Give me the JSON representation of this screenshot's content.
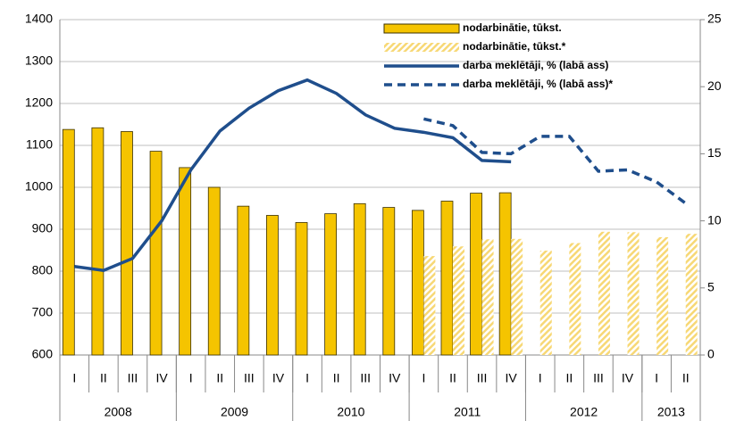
{
  "chart_data": {
    "type": "bar_line",
    "categories": [
      "I",
      "II",
      "III",
      "IV",
      "I",
      "II",
      "III",
      "IV",
      "I",
      "II",
      "III",
      "IV",
      "I",
      "II",
      "III",
      "IV",
      "I",
      "II",
      "III",
      "IV",
      "I",
      "II"
    ],
    "x_groups": [
      {
        "label": "2008",
        "count": 4
      },
      {
        "label": "2009",
        "count": 4
      },
      {
        "label": "2010",
        "count": 4
      },
      {
        "label": "2011",
        "count": 4
      },
      {
        "label": "2012",
        "count": 4
      },
      {
        "label": "2013",
        "count": 2
      }
    ],
    "series": [
      {
        "name": "nodarbinātie, tūkst.",
        "type": "bar",
        "color": "#f5c400",
        "values": [
          1138,
          1142,
          1133,
          1086,
          1047,
          1000,
          955,
          933,
          916,
          937,
          961,
          952,
          945,
          967,
          986,
          987,
          null,
          null,
          null,
          null,
          null,
          null
        ]
      },
      {
        "name": "nodarbinātie, tūkst.*",
        "type": "bar",
        "color": "#f5c400",
        "hatched": true,
        "values": [
          null,
          null,
          null,
          null,
          null,
          null,
          null,
          null,
          null,
          null,
          null,
          null,
          836,
          859,
          876,
          877,
          849,
          867,
          894,
          893,
          881,
          889
        ]
      },
      {
        "name": "darba meklētāji, % (labā ass)",
        "type": "line",
        "axis": "y2",
        "color": "#1f4e8c",
        "values": [
          6.6,
          6.3,
          7.2,
          10.0,
          13.8,
          16.7,
          18.4,
          19.7,
          20.5,
          19.5,
          17.9,
          16.9,
          16.6,
          16.2,
          14.5,
          14.4,
          null,
          null,
          null,
          null,
          null,
          null
        ]
      },
      {
        "name": "darba meklētāji, % (labā ass)*",
        "type": "line",
        "axis": "y2",
        "color": "#1f4e8c",
        "dashed": true,
        "values": [
          null,
          null,
          null,
          null,
          null,
          null,
          null,
          null,
          null,
          null,
          null,
          null,
          17.6,
          17.1,
          15.1,
          15.0,
          16.3,
          16.3,
          13.7,
          13.8,
          12.9,
          11.3
        ]
      }
    ],
    "ylim": [
      600,
      1400
    ],
    "yticks": [
      600,
      700,
      800,
      900,
      1000,
      1100,
      1200,
      1300,
      1400
    ],
    "y2lim": [
      0,
      25
    ],
    "y2ticks": [
      0,
      5,
      10,
      15,
      20,
      25
    ],
    "grid": true,
    "legend": "top-right"
  }
}
